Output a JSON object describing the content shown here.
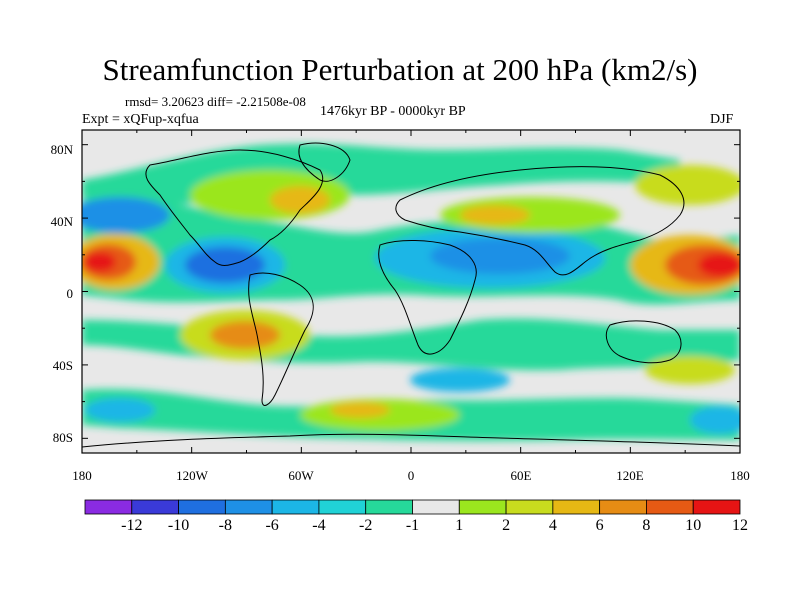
{
  "title": "Streamfunction Perturbation at 200 hPa (km2/s)",
  "stats": "rmsd= 3.20623 diff= -2.21508e-08",
  "experiment": "Expt = xQFup-xqfua",
  "period": "1476kyr BP - 0000kyr BP",
  "season": "DJF",
  "lat_labels": [
    "80N",
    "40N",
    "0",
    "40S",
    "80S"
  ],
  "lon_labels": [
    "180",
    "120W",
    "60W",
    "0",
    "60E",
    "120E",
    "180"
  ],
  "colorbar": {
    "labels": [
      "-12",
      "-10",
      "-8",
      "-6",
      "-4",
      "-2",
      "-1",
      "1",
      "2",
      "4",
      "6",
      "8",
      "10",
      "12"
    ],
    "colors": [
      "#8a2be2",
      "#3a3ad8",
      "#1f6fe0",
      "#1e90e6",
      "#1cb6e6",
      "#20d2d6",
      "#26d99a",
      "#e8e8e8",
      "#9be61e",
      "#c8dc1e",
      "#e6b814",
      "#e68c14",
      "#e65a14",
      "#e61414"
    ]
  },
  "field_regions": [
    {
      "name": "n-pacific-west-low",
      "level": -4,
      "lon": -165,
      "lat": 25
    },
    {
      "name": "pacific-equator-high",
      "level": 11,
      "lon": -180,
      "lat": 18
    },
    {
      "name": "east-pacific-low",
      "level": -8,
      "lon": -110,
      "lat": 18
    },
    {
      "name": "north-america-high",
      "level": 4,
      "lon": -90,
      "lat": 45
    },
    {
      "name": "south-pacific-high",
      "level": 8,
      "lon": -90,
      "lat": -22
    },
    {
      "name": "africa-asia-low",
      "level": -6,
      "lon": 45,
      "lat": 18
    },
    {
      "name": "eurasia-high",
      "level": 4,
      "lon": 60,
      "lat": 42
    },
    {
      "name": "west-pacific-high",
      "level": 11,
      "lon": 170,
      "lat": 18
    },
    {
      "name": "south-indian-low",
      "level": -2,
      "lon": 60,
      "lat": -25
    },
    {
      "name": "southern-ocean-low",
      "level": -4,
      "lon": -150,
      "lat": -55
    }
  ]
}
